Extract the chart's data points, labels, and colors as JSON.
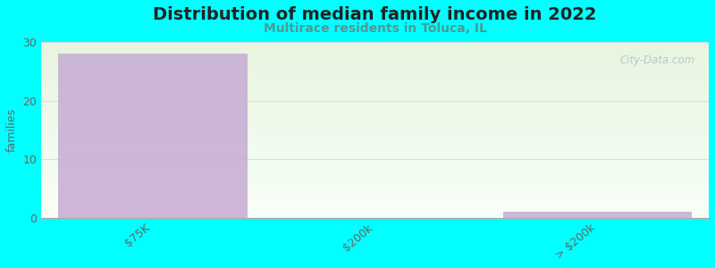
{
  "title": "Distribution of median family income in 2022",
  "subtitle": "Multirace residents in Toluca, IL",
  "categories": [
    "$75K",
    "$200k",
    "> $200k"
  ],
  "values": [
    28,
    0,
    1
  ],
  "bar_color": "#c9afd4",
  "bg_color": "#00FFFF",
  "ylabel": "families",
  "ylim": [
    0,
    30
  ],
  "yticks": [
    0,
    10,
    20,
    30
  ],
  "watermark": "City-Data.com",
  "title_fontsize": 14,
  "subtitle_fontsize": 10,
  "subtitle_color": "#4a9a9a",
  "title_color": "#222222",
  "tick_color": "#666666",
  "grad_top": "#e8f5e0",
  "grad_bottom": "#f8fff8",
  "grid_color": "#dddddd"
}
